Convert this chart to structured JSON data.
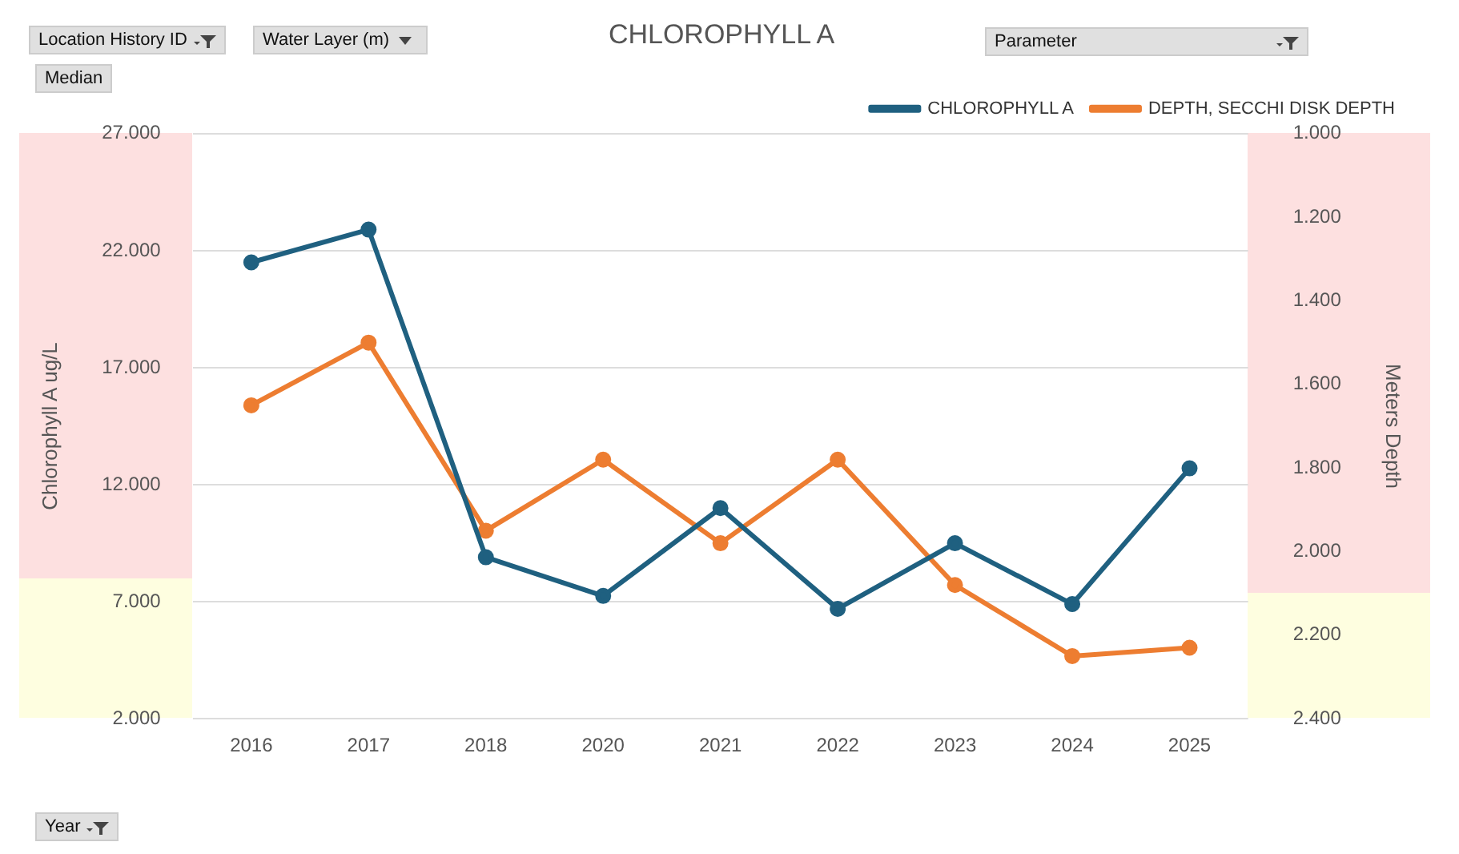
{
  "chart_data": {
    "type": "line",
    "title": "CHLOROPHYLL A",
    "ylabel": "Chlorophyll A ug/L",
    "y2label": "Meters Depth",
    "categories": [
      "2016",
      "2017",
      "2018",
      "2020",
      "2021",
      "2022",
      "2023",
      "2024",
      "2025"
    ],
    "series": [
      {
        "name": "CHLOROPHYLL A",
        "color": "#1f6080",
        "values": [
          21.5,
          22.9,
          8.9,
          7.25,
          11.0,
          6.7,
          9.5,
          6.9,
          12.7
        ]
      },
      {
        "name": "DEPTH, SECCHI DISK DEPTH",
        "color": "#ed7d31",
        "axis": "y2",
        "values": [
          1.65,
          1.5,
          1.95,
          1.78,
          1.98,
          1.78,
          2.08,
          2.25,
          2.23
        ]
      }
    ],
    "ylim": [
      2,
      27
    ],
    "yticks": [
      {
        "value": 2,
        "label": "2.000"
      },
      {
        "value": 7,
        "label": "7.000"
      },
      {
        "value": 12,
        "label": "12.000"
      },
      {
        "value": 17,
        "label": "17.000"
      },
      {
        "value": 22,
        "label": "22.000"
      },
      {
        "value": 27,
        "label": "27.000"
      }
    ],
    "y2lim": [
      2.4,
      1.0
    ],
    "y2ticks": [
      {
        "value": 1,
        "label": "1.000"
      },
      {
        "value": 1.2,
        "label": "1.200"
      },
      {
        "value": 1.4,
        "label": "1.400"
      },
      {
        "value": 1.6,
        "label": "1.600"
      },
      {
        "value": 1.8,
        "label": "1.800"
      },
      {
        "value": 2,
        "label": "2.000"
      },
      {
        "value": 2.2,
        "label": "2.200"
      },
      {
        "value": 2.4,
        "label": "2.400"
      }
    ],
    "annotations": [
      "Location History ID",
      "Water Layer (m)",
      "Median",
      "Parameter",
      "Year"
    ],
    "grid": "y",
    "legend": "top right",
    "marker": "circle",
    "line_style": "solid"
  }
}
